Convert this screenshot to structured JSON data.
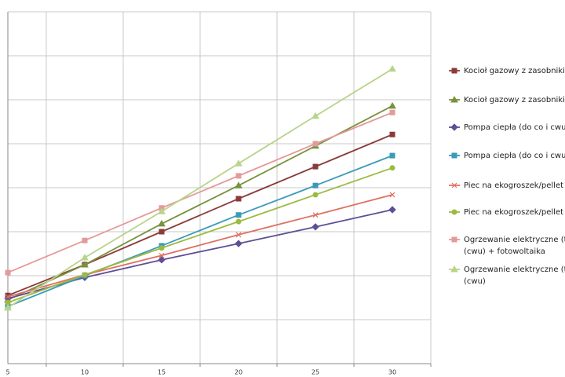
{
  "chart_data": {
    "type": "line",
    "categories": [
      "5",
      "10",
      "15",
      "20",
      "25",
      "30"
    ],
    "ylim": [
      0,
      8
    ],
    "yticks": [
      0,
      1,
      2,
      3,
      4,
      5,
      6,
      7,
      8
    ],
    "grid": true,
    "series": [
      {
        "name": "Kocioł gazowy z zasobnikiem (",
        "color": "#8b3a3a",
        "marker": "square",
        "values": [
          1.55,
          2.25,
          3.0,
          3.75,
          4.48,
          5.21
        ]
      },
      {
        "name": "Kocioł gazowy z zasobnikiem (",
        "color": "#77923c",
        "marker": "triangle",
        "values": [
          1.45,
          2.25,
          3.18,
          4.05,
          4.95,
          5.86
        ]
      },
      {
        "name": "Pompa ciepła (do co i cwu) + f",
        "color": "#5f4f96",
        "marker": "diamond",
        "values": [
          1.48,
          1.96,
          2.36,
          2.73,
          3.11,
          3.5
        ]
      },
      {
        "name": "Pompa ciepła (do co i cwu)",
        "color": "#3a9ab8",
        "marker": "square",
        "values": [
          1.3,
          2.0,
          2.68,
          3.38,
          4.05,
          4.73
        ]
      },
      {
        "name": "Piec na ekogroszek/pellet (do",
        "color": "#e07060",
        "marker": "x",
        "values": [
          1.52,
          2.02,
          2.46,
          2.93,
          3.38,
          3.84
        ]
      },
      {
        "name": "Piec na ekogroszek/pellet (do",
        "color": "#9bbb40",
        "marker": "circle",
        "values": [
          1.39,
          2.02,
          2.63,
          3.23,
          3.84,
          4.45
        ]
      },
      {
        "name": "Ogrzewanie elektryczne (tylkc\n(cwu) + fotowoltaika",
        "color": "#e59a9a",
        "marker": "square",
        "values": [
          2.07,
          2.8,
          3.54,
          4.27,
          5.0,
          5.71
        ]
      },
      {
        "name": "Ogrzewanie elektryczne (tylkc\n(cwu)",
        "color": "#b8d48a",
        "marker": "triangle",
        "values": [
          1.27,
          2.41,
          3.46,
          4.55,
          5.63,
          6.7
        ]
      }
    ]
  }
}
